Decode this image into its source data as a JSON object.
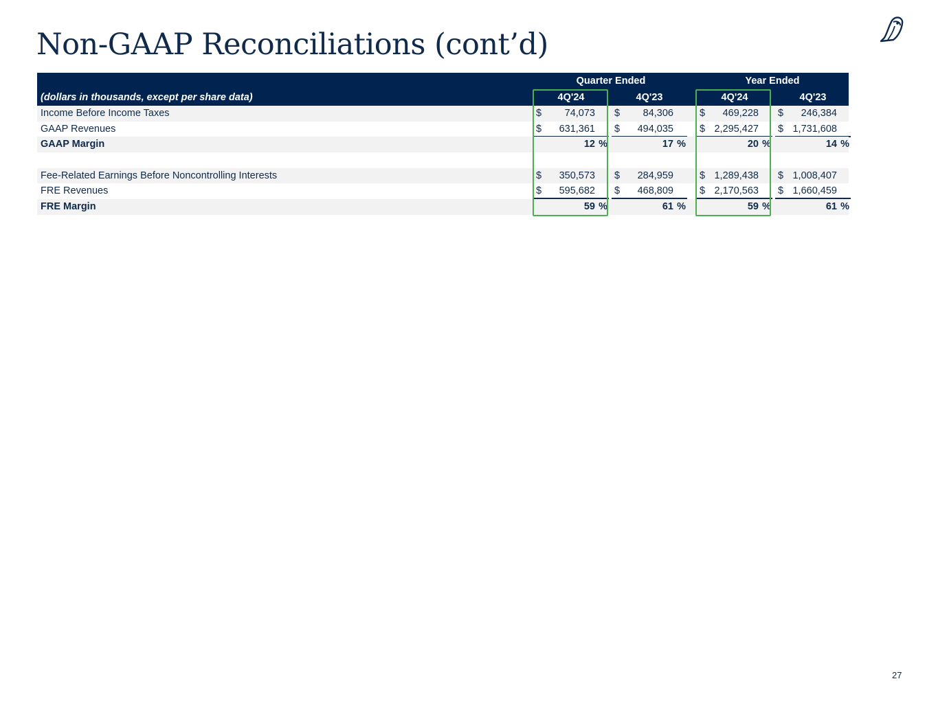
{
  "page": {
    "title": "Non-GAAP Reconciliations (cont’d)",
    "page_number": "27"
  },
  "colors": {
    "header_bg": "#00244f",
    "text": "#0f2a4a",
    "highlight": "#4caf50",
    "row_shade": "#f2f2f2"
  },
  "table": {
    "description": "(dollars in thousands, except per share data)",
    "groups": [
      "Quarter Ended",
      "Year Ended"
    ],
    "columns": [
      "4Q'24",
      "4Q'23",
      "4Q'24",
      "4Q'23"
    ],
    "rows": [
      {
        "label": "Income Before Income Taxes",
        "cells": [
          "74,073",
          "84,306",
          "469,228",
          "246,384"
        ]
      },
      {
        "label": "GAAP Revenues",
        "cells": [
          "631,361",
          "494,035",
          "2,295,427",
          "1,731,608"
        ]
      },
      {
        "label": "GAAP Margin",
        "cells": [
          "12",
          "17",
          "20",
          "14"
        ]
      },
      {
        "label": "Fee-Related Earnings Before Noncontrolling Interests",
        "cells": [
          "350,573",
          "284,959",
          "1,289,438",
          "1,008,407"
        ]
      },
      {
        "label": "FRE Revenues",
        "cells": [
          "595,682",
          "468,809",
          "2,170,563",
          "1,660,459"
        ]
      },
      {
        "label": "FRE Margin",
        "cells": [
          "59",
          "61",
          "59",
          "61"
        ]
      }
    ],
    "currency_symbol": "$",
    "percent_symbol": "%"
  }
}
